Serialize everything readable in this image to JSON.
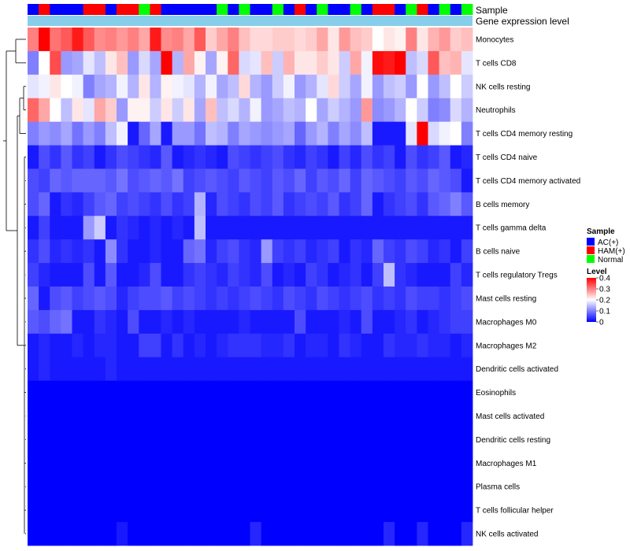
{
  "chart_data": {
    "type": "heatmap",
    "annotations": {
      "sample_label": "Sample",
      "expression_label": "Gene expression level",
      "sample_groups": [
        "AC(+)",
        "HAM(+)",
        "AC(+)",
        "AC(+)",
        "AC(+)",
        "HAM(+)",
        "HAM(+)",
        "AC(+)",
        "HAM(+)",
        "HAM(+)",
        "Normal",
        "HAM(+)",
        "AC(+)",
        "AC(+)",
        "AC(+)",
        "AC(+)",
        "AC(+)",
        "Normal",
        "AC(+)",
        "Normal",
        "AC(+)",
        "AC(+)",
        "Normal",
        "AC(+)",
        "HAM(+)",
        "AC(+)",
        "Normal",
        "AC(+)",
        "AC(+)",
        "Normal",
        "AC(+)",
        "HAM(+)",
        "HAM(+)",
        "AC(+)",
        "Normal",
        "HAM(+)",
        "AC(+)",
        "Normal",
        "AC(+)",
        "Normal"
      ]
    },
    "rows": [
      "Monocytes",
      "T cells CD8",
      "NK cells resting",
      "Neutrophils",
      "T cells CD4 memory resting",
      "T cells CD4 naive",
      "T cells CD4 memory activated",
      "B cells memory",
      "T cells gamma delta",
      "B cells naive",
      "T cells regulatory  Tregs",
      "Mast cells resting",
      "Macrophages M0",
      "Macrophages M2",
      "Dendritic cells activated",
      "Eosinophils",
      "Mast cells activated",
      "Dendritic cells resting",
      "Macrophages M1",
      "Plasma cells",
      "T cells follicular helper",
      "NK cells activated"
    ],
    "values": [
      [
        0.3,
        0.4,
        0.31,
        0.33,
        0.38,
        0.33,
        0.29,
        0.3,
        0.28,
        0.3,
        0.27,
        0.38,
        0.29,
        0.3,
        0.27,
        0.33,
        0.24,
        0.27,
        0.3,
        0.25,
        0.23,
        0.23,
        0.24,
        0.24,
        0.23,
        0.24,
        0.27,
        0.22,
        0.28,
        0.25,
        0.24,
        0.2,
        0.22,
        0.21,
        0.3,
        0.22,
        0.26,
        0.28,
        0.24,
        0.25
      ],
      [
        0.1,
        0.2,
        0.34,
        0.12,
        0.13,
        0.18,
        0.15,
        0.22,
        0.25,
        0.12,
        0.17,
        0.13,
        0.4,
        0.14,
        0.27,
        0.21,
        0.13,
        0.21,
        0.32,
        0.17,
        0.18,
        0.25,
        0.16,
        0.26,
        0.22,
        0.22,
        0.24,
        0.22,
        0.16,
        0.27,
        0.19,
        0.39,
        0.38,
        0.4,
        0.15,
        0.17,
        0.33,
        0.25,
        0.26,
        0.18
      ],
      [
        0.18,
        0.19,
        0.22,
        0.2,
        0.19,
        0.1,
        0.13,
        0.14,
        0.19,
        0.14,
        0.22,
        0.14,
        0.21,
        0.19,
        0.18,
        0.14,
        0.19,
        0.13,
        0.15,
        0.23,
        0.14,
        0.12,
        0.16,
        0.19,
        0.12,
        0.14,
        0.18,
        0.23,
        0.16,
        0.13,
        0.19,
        0.12,
        0.15,
        0.16,
        0.12,
        0.2,
        0.12,
        0.15,
        0.2,
        0.16
      ],
      [
        0.32,
        0.27,
        0.2,
        0.15,
        0.22,
        0.18,
        0.27,
        0.24,
        0.12,
        0.21,
        0.21,
        0.16,
        0.22,
        0.16,
        0.22,
        0.13,
        0.25,
        0.15,
        0.17,
        0.14,
        0.19,
        0.12,
        0.13,
        0.15,
        0.14,
        0.2,
        0.13,
        0.16,
        0.14,
        0.12,
        0.28,
        0.11,
        0.12,
        0.14,
        0.2,
        0.16,
        0.1,
        0.11,
        0.17,
        0.14
      ],
      [
        0.1,
        0.12,
        0.11,
        0.13,
        0.09,
        0.12,
        0.1,
        0.15,
        0.19,
        0.02,
        0.08,
        0.13,
        0.02,
        0.12,
        0.12,
        0.09,
        0.15,
        0.14,
        0.1,
        0.13,
        0.12,
        0.11,
        0.12,
        0.13,
        0.08,
        0.12,
        0.14,
        0.1,
        0.13,
        0.11,
        0.15,
        0.02,
        0.02,
        0.02,
        0.18,
        0.4,
        0.17,
        0.19,
        0.2,
        0.1
      ],
      [
        0.02,
        0.06,
        0.04,
        0.07,
        0.04,
        0.05,
        0.02,
        0.04,
        0.06,
        0.05,
        0.04,
        0.03,
        0.07,
        0.02,
        0.03,
        0.04,
        0.03,
        0.02,
        0.06,
        0.05,
        0.04,
        0.05,
        0.06,
        0.04,
        0.03,
        0.05,
        0.04,
        0.02,
        0.05,
        0.03,
        0.06,
        0.04,
        0.05,
        0.02,
        0.06,
        0.04,
        0.05,
        0.07,
        0.02,
        0.03
      ],
      [
        0.06,
        0.05,
        0.08,
        0.07,
        0.08,
        0.08,
        0.08,
        0.07,
        0.09,
        0.06,
        0.07,
        0.08,
        0.07,
        0.09,
        0.05,
        0.06,
        0.07,
        0.06,
        0.05,
        0.07,
        0.06,
        0.05,
        0.07,
        0.06,
        0.08,
        0.05,
        0.07,
        0.06,
        0.08,
        0.05,
        0.08,
        0.07,
        0.06,
        0.05,
        0.07,
        0.06,
        0.08,
        0.07,
        0.06,
        0.02
      ],
      [
        0.06,
        0.08,
        0.02,
        0.04,
        0.03,
        0.05,
        0.07,
        0.08,
        0.05,
        0.06,
        0.05,
        0.04,
        0.06,
        0.04,
        0.05,
        0.14,
        0.03,
        0.06,
        0.05,
        0.04,
        0.06,
        0.05,
        0.07,
        0.04,
        0.05,
        0.06,
        0.05,
        0.07,
        0.04,
        0.05,
        0.08,
        0.02,
        0.04,
        0.05,
        0.06,
        0.04,
        0.07,
        0.08,
        0.1,
        0.07
      ],
      [
        0.02,
        0.05,
        0.02,
        0.02,
        0.02,
        0.12,
        0.16,
        0.02,
        0.04,
        0.03,
        0.02,
        0.03,
        0.02,
        0.03,
        0.02,
        0.15,
        0.02,
        0.02,
        0.02,
        0.02,
        0.02,
        0.02,
        0.02,
        0.02,
        0.02,
        0.02,
        0.02,
        0.02,
        0.02,
        0.02,
        0.02,
        0.02,
        0.02,
        0.02,
        0.02,
        0.02,
        0.02,
        0.02,
        0.02,
        0.02
      ],
      [
        0.04,
        0.06,
        0.03,
        0.04,
        0.03,
        0.04,
        0.02,
        0.11,
        0.04,
        0.02,
        0.02,
        0.03,
        0.02,
        0.02,
        0.08,
        0.09,
        0.03,
        0.05,
        0.06,
        0.04,
        0.03,
        0.12,
        0.05,
        0.04,
        0.05,
        0.03,
        0.04,
        0.05,
        0.02,
        0.04,
        0.03,
        0.08,
        0.05,
        0.04,
        0.06,
        0.05,
        0.03,
        0.04,
        0.02,
        0.05
      ],
      [
        0.05,
        0.03,
        0.02,
        0.02,
        0.02,
        0.06,
        0.02,
        0.07,
        0.02,
        0.02,
        0.03,
        0.06,
        0.02,
        0.02,
        0.04,
        0.05,
        0.04,
        0.03,
        0.05,
        0.04,
        0.03,
        0.06,
        0.02,
        0.03,
        0.02,
        0.05,
        0.04,
        0.02,
        0.03,
        0.04,
        0.02,
        0.05,
        0.15,
        0.04,
        0.03,
        0.02,
        0.02,
        0.02,
        0.05,
        0.03
      ],
      [
        0.08,
        0.02,
        0.06,
        0.07,
        0.05,
        0.06,
        0.07,
        0.06,
        0.03,
        0.05,
        0.06,
        0.06,
        0.07,
        0.05,
        0.06,
        0.05,
        0.04,
        0.05,
        0.04,
        0.05,
        0.06,
        0.05,
        0.04,
        0.06,
        0.05,
        0.04,
        0.06,
        0.05,
        0.04,
        0.05,
        0.06,
        0.04,
        0.05,
        0.04,
        0.06,
        0.05,
        0.05,
        0.04,
        0.05,
        0.06
      ],
      [
        0.07,
        0.06,
        0.08,
        0.09,
        0.02,
        0.02,
        0.04,
        0.03,
        0.02,
        0.06,
        0.02,
        0.02,
        0.03,
        0.02,
        0.03,
        0.02,
        0.02,
        0.02,
        0.02,
        0.03,
        0.02,
        0.02,
        0.02,
        0.02,
        0.06,
        0.02,
        0.02,
        0.02,
        0.03,
        0.02,
        0.06,
        0.02,
        0.02,
        0.03,
        0.04,
        0.02,
        0.03,
        0.04,
        0.05,
        0.05
      ],
      [
        0.02,
        0.03,
        0.02,
        0.02,
        0.03,
        0.02,
        0.03,
        0.03,
        0.02,
        0.02,
        0.05,
        0.05,
        0.02,
        0.04,
        0.02,
        0.03,
        0.02,
        0.03,
        0.04,
        0.04,
        0.04,
        0.03,
        0.03,
        0.04,
        0.02,
        0.03,
        0.03,
        0.02,
        0.04,
        0.03,
        0.02,
        0.02,
        0.04,
        0.03,
        0.03,
        0.04,
        0.03,
        0.03,
        0.02,
        0.03
      ],
      [
        0.02,
        0.03,
        0.02,
        0.02,
        0.02,
        0.02,
        0.02,
        0.03,
        0.02,
        0.02,
        0.02,
        0.02,
        0.02,
        0.02,
        0.02,
        0.02,
        0.02,
        0.02,
        0.02,
        0.02,
        0.02,
        0.02,
        0.02,
        0.02,
        0.02,
        0.02,
        0.02,
        0.02,
        0.02,
        0.02,
        0.02,
        0.02,
        0.02,
        0.02,
        0.02,
        0.02,
        0.02,
        0.02,
        0.02,
        0.02
      ],
      [
        0.0,
        0.0,
        0.0,
        0.0,
        0.0,
        0.0,
        0.0,
        0.0,
        0.0,
        0.0,
        0.0,
        0.0,
        0.0,
        0.0,
        0.0,
        0.0,
        0.0,
        0.0,
        0.0,
        0.0,
        0.0,
        0.0,
        0.0,
        0.0,
        0.0,
        0.0,
        0.0,
        0.0,
        0.0,
        0.0,
        0.0,
        0.0,
        0.0,
        0.0,
        0.0,
        0.0,
        0.0,
        0.0,
        0.0,
        0.0
      ],
      [
        0.0,
        0.0,
        0.0,
        0.0,
        0.0,
        0.0,
        0.0,
        0.0,
        0.0,
        0.0,
        0.0,
        0.0,
        0.0,
        0.0,
        0.0,
        0.0,
        0.0,
        0.0,
        0.0,
        0.0,
        0.0,
        0.0,
        0.0,
        0.0,
        0.0,
        0.0,
        0.0,
        0.0,
        0.0,
        0.0,
        0.0,
        0.0,
        0.0,
        0.0,
        0.0,
        0.0,
        0.0,
        0.0,
        0.0,
        0.0
      ],
      [
        0.0,
        0.0,
        0.0,
        0.0,
        0.0,
        0.0,
        0.0,
        0.0,
        0.0,
        0.0,
        0.0,
        0.0,
        0.0,
        0.0,
        0.0,
        0.0,
        0.0,
        0.0,
        0.0,
        0.0,
        0.0,
        0.0,
        0.0,
        0.0,
        0.0,
        0.0,
        0.0,
        0.0,
        0.0,
        0.0,
        0.0,
        0.0,
        0.0,
        0.0,
        0.0,
        0.0,
        0.0,
        0.0,
        0.0,
        0.0
      ],
      [
        0.0,
        0.0,
        0.0,
        0.0,
        0.0,
        0.0,
        0.0,
        0.0,
        0.0,
        0.0,
        0.0,
        0.0,
        0.0,
        0.0,
        0.0,
        0.0,
        0.0,
        0.0,
        0.0,
        0.0,
        0.0,
        0.0,
        0.0,
        0.0,
        0.0,
        0.0,
        0.0,
        0.0,
        0.0,
        0.0,
        0.0,
        0.0,
        0.0,
        0.0,
        0.0,
        0.0,
        0.0,
        0.0,
        0.0,
        0.0
      ],
      [
        0.0,
        0.0,
        0.0,
        0.0,
        0.0,
        0.0,
        0.0,
        0.0,
        0.0,
        0.0,
        0.0,
        0.0,
        0.0,
        0.0,
        0.0,
        0.0,
        0.0,
        0.0,
        0.0,
        0.0,
        0.0,
        0.0,
        0.0,
        0.0,
        0.0,
        0.0,
        0.0,
        0.0,
        0.0,
        0.0,
        0.0,
        0.0,
        0.0,
        0.0,
        0.0,
        0.0,
        0.0,
        0.0,
        0.0,
        0.0
      ],
      [
        0.0,
        0.0,
        0.0,
        0.0,
        0.0,
        0.0,
        0.0,
        0.0,
        0.0,
        0.0,
        0.0,
        0.0,
        0.0,
        0.0,
        0.0,
        0.0,
        0.0,
        0.0,
        0.0,
        0.0,
        0.0,
        0.0,
        0.0,
        0.0,
        0.0,
        0.0,
        0.0,
        0.0,
        0.0,
        0.0,
        0.0,
        0.0,
        0.0,
        0.0,
        0.0,
        0.0,
        0.0,
        0.0,
        0.0,
        0.0
      ],
      [
        0.0,
        0.0,
        0.0,
        0.0,
        0.0,
        0.0,
        0.0,
        0.0,
        0.02,
        0.0,
        0.0,
        0.0,
        0.0,
        0.0,
        0.0,
        0.0,
        0.0,
        0.0,
        0.0,
        0.0,
        0.03,
        0.0,
        0.0,
        0.0,
        0.0,
        0.0,
        0.0,
        0.0,
        0.0,
        0.0,
        0.0,
        0.0,
        0.03,
        0.0,
        0.0,
        0.03,
        0.0,
        0.0,
        0.0,
        0.03
      ]
    ],
    "color_scale": {
      "min": 0,
      "max": 0.4,
      "low": "#0000ff",
      "mid": "#ffffff",
      "high": "#ff0000",
      "midpoint": 0.2
    },
    "legend": {
      "sample_title": "Sample",
      "sample_items": [
        {
          "label": "AC(+)",
          "color": "#0000ff"
        },
        {
          "label": "HAM(+)",
          "color": "#ff0000"
        },
        {
          "label": "Normal",
          "color": "#00ff00"
        }
      ],
      "level_title": "Level",
      "level_ticks": [
        "0.4",
        "0.3",
        "0.2",
        "0.1",
        "0"
      ],
      "level_tick_values": [
        0.4,
        0.3,
        0.2,
        0.1,
        0
      ],
      "position": "right"
    },
    "colors": {
      "ann_expression": "#87ceeb",
      "dendrogram": "#000000"
    },
    "row_dendrogram": true
  }
}
